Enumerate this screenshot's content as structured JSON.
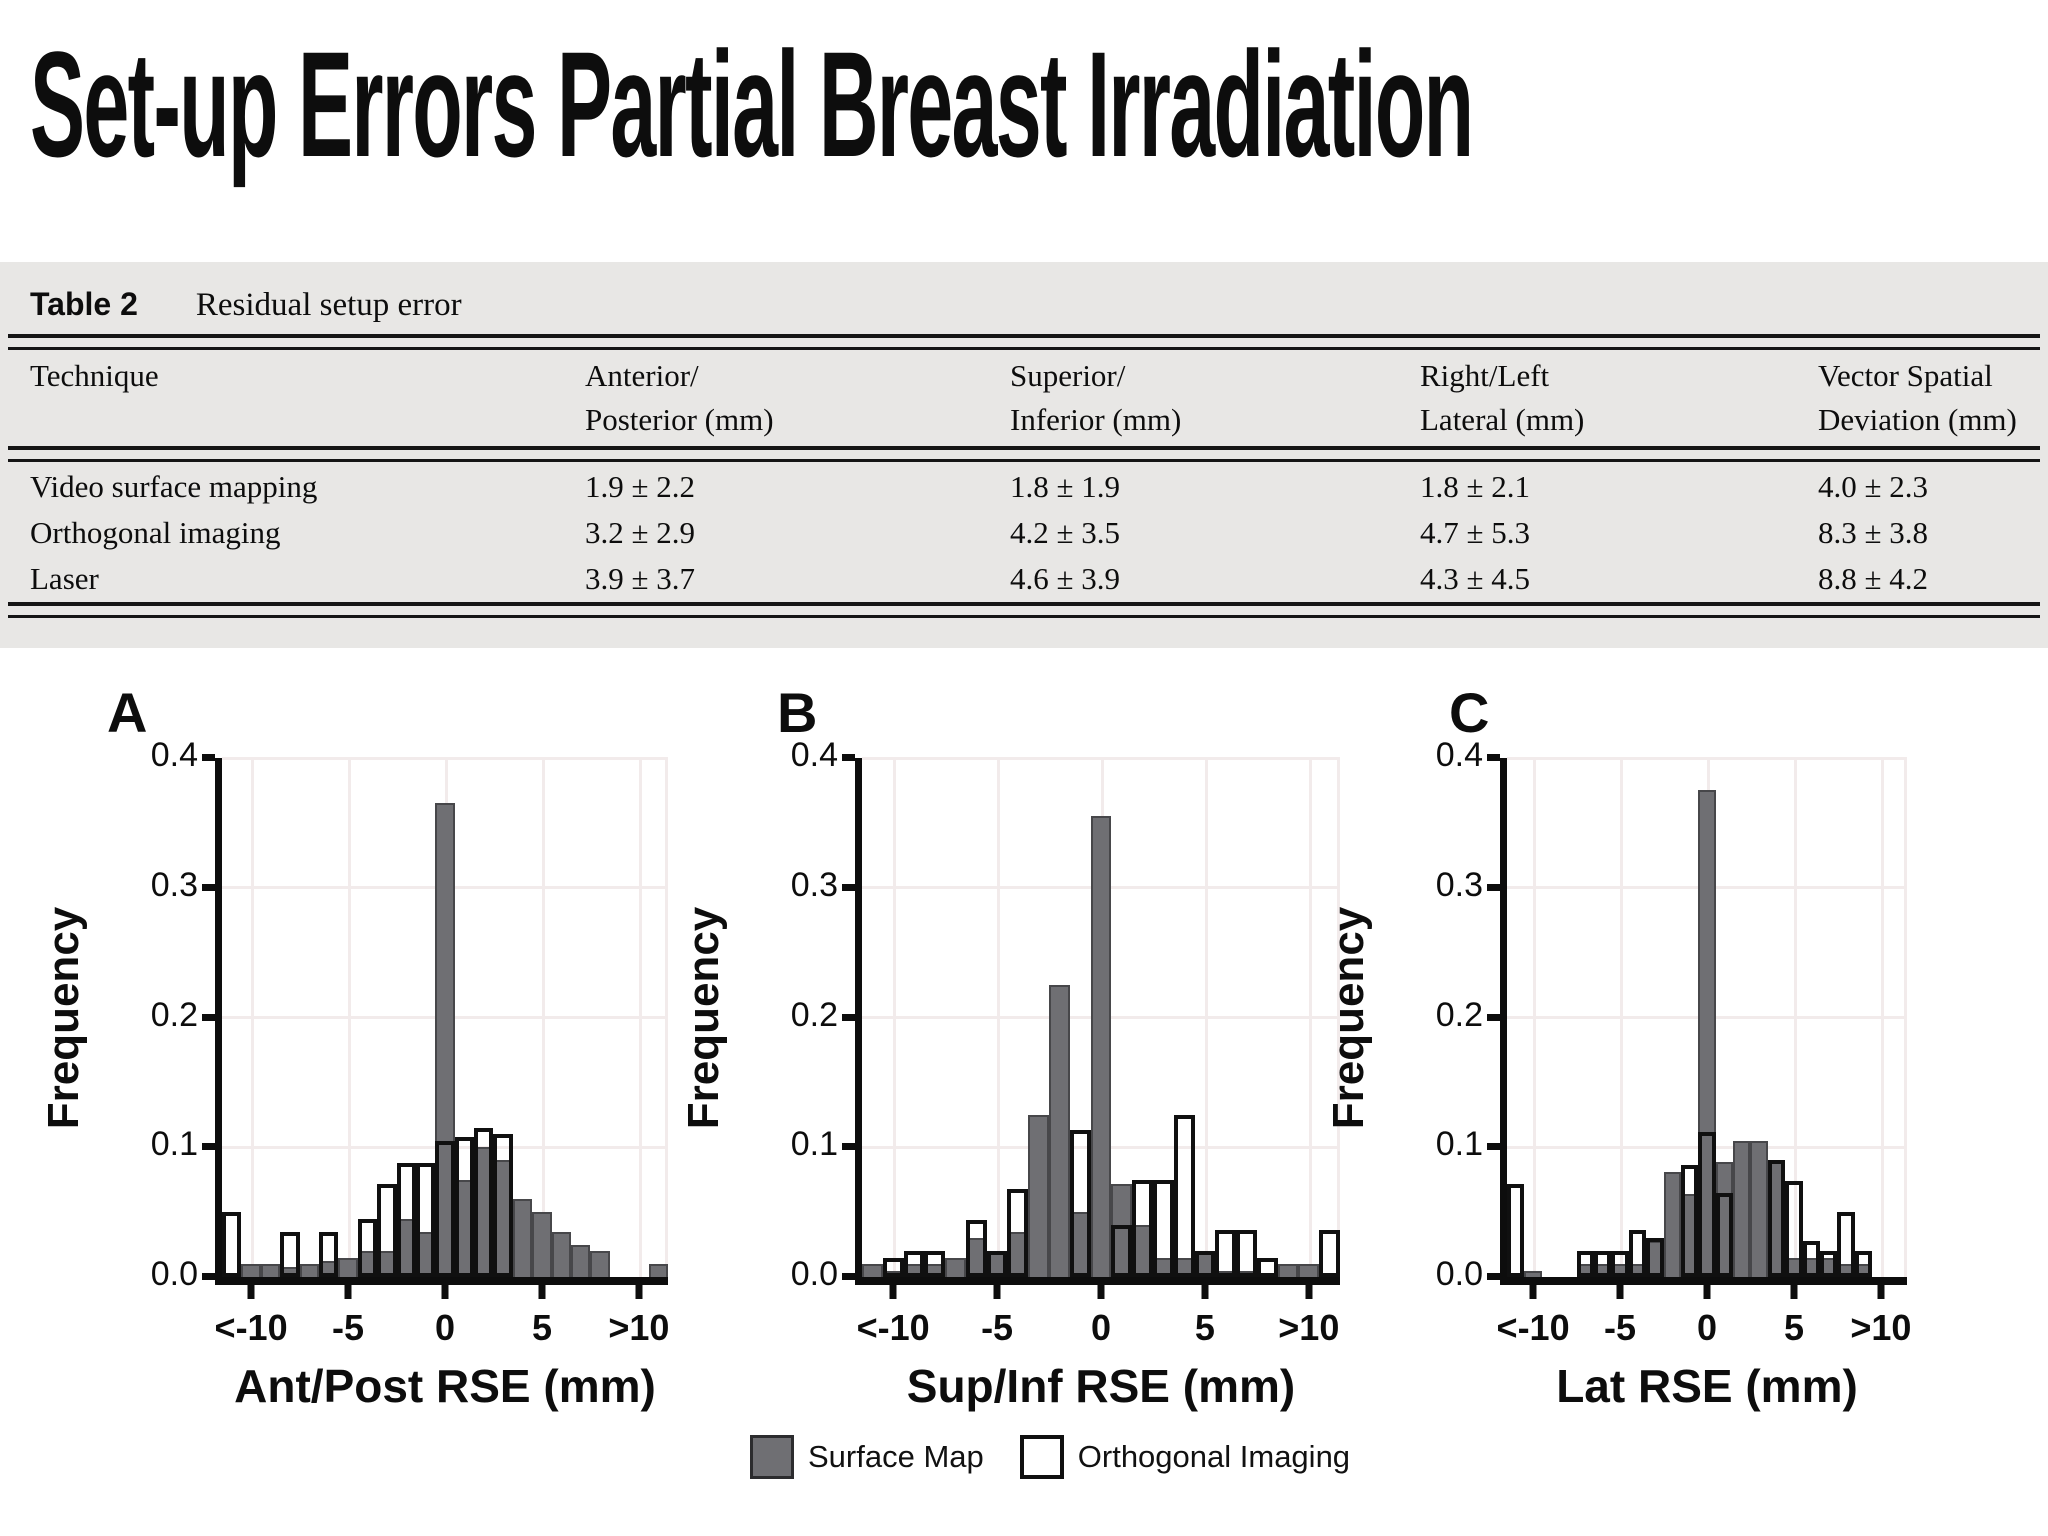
{
  "title": "Set-up Errors Partial Breast Irradiation",
  "table": {
    "label": "Table 2",
    "caption": "Residual setup error",
    "headers": [
      {
        "line1": "Technique",
        "line2": ""
      },
      {
        "line1": "Anterior/",
        "line2": "Posterior (mm)"
      },
      {
        "line1": "Superior/",
        "line2": "Inferior (mm)"
      },
      {
        "line1": "Right/Left",
        "line2": "Lateral (mm)"
      },
      {
        "line1": "Vector Spatial",
        "line2": "Deviation (mm)"
      }
    ],
    "rows": [
      [
        "Video surface mapping",
        "1.9 ± 2.2",
        "1.8 ± 1.9",
        "1.8 ± 2.1",
        "4.0 ± 2.3"
      ],
      [
        "Orthogonal imaging",
        "3.2 ± 2.9",
        "4.2 ± 3.5",
        "4.7 ± 5.3",
        "8.3 ± 3.8"
      ],
      [
        "Laser",
        "3.9 ± 3.7",
        "4.6 ± 3.9",
        "4.3 ± 4.5",
        "8.8 ± 4.2"
      ]
    ]
  },
  "legend": {
    "surface_label": "Surface Map",
    "orthogonal_label": "Orthogonal Imaging"
  },
  "colors": {
    "surface_fill": "#6f6f73",
    "surface_edge": "#47474a",
    "orthogonal_edge": "#101010",
    "table_bg": "#e8e7e5",
    "grid": "#f2ebeb"
  },
  "chart_data": [
    {
      "type": "bar",
      "panel": "A",
      "xlabel": "Ant/Post RSE (mm)",
      "ylabel": "Frequency",
      "ylim": [
        0,
        0.4
      ],
      "yticks": [
        0,
        0.1,
        0.2,
        0.3,
        0.4
      ],
      "ytick_labels": [
        "0.0",
        "0.1",
        "0.2",
        "0.3",
        "0.4"
      ],
      "xticks": [
        -10,
        -5,
        0,
        5,
        10
      ],
      "xtick_labels": [
        "<-10",
        "-5",
        "0",
        "5",
        ">10"
      ],
      "xrange": [
        -11.5,
        11.5
      ],
      "bin_width": 1,
      "grid": true,
      "legend_position": "bottom",
      "bin_centers": [
        -11,
        -10,
        -9,
        -8,
        -7,
        -6,
        -5,
        -4,
        -3,
        -2,
        -1,
        0,
        1,
        2,
        3,
        4,
        5,
        6,
        7,
        8,
        9,
        10,
        11
      ],
      "series": [
        {
          "name": "Surface Map",
          "values": [
            0,
            0.01,
            0.01,
            0.008,
            0.01,
            0.012,
            0.015,
            0.02,
            0.02,
            0.045,
            0.035,
            0.365,
            0.075,
            0.1,
            0.09,
            0.06,
            0.05,
            0.035,
            0.025,
            0.02,
            0,
            0,
            0.01
          ]
        },
        {
          "name": "Orthogonal Imaging",
          "values": [
            0.05,
            0,
            0,
            0.035,
            0,
            0.035,
            0,
            0.045,
            0.072,
            0.088,
            0.088,
            0.105,
            0.108,
            0.115,
            0.11,
            0,
            0,
            0,
            0,
            0,
            0,
            0,
            0
          ]
        }
      ]
    },
    {
      "type": "bar",
      "panel": "B",
      "xlabel": "Sup/Inf RSE (mm)",
      "ylabel": "Frequency",
      "ylim": [
        0,
        0.4
      ],
      "yticks": [
        0,
        0.1,
        0.2,
        0.3,
        0.4
      ],
      "ytick_labels": [
        "0.0",
        "0.1",
        "0.2",
        "0.3",
        "0.4"
      ],
      "xticks": [
        -10,
        -5,
        0,
        5,
        10
      ],
      "xtick_labels": [
        "<-10",
        "-5",
        "0",
        "5",
        ">10"
      ],
      "xrange": [
        -11.5,
        11.5
      ],
      "bin_width": 1,
      "grid": true,
      "legend_position": "bottom",
      "bin_centers": [
        -11,
        -10,
        -9,
        -8,
        -7,
        -6,
        -5,
        -4,
        -3,
        -2,
        -1,
        0,
        1,
        2,
        3,
        4,
        5,
        6,
        7,
        8,
        9,
        10,
        11
      ],
      "series": [
        {
          "name": "Surface Map",
          "values": [
            0.01,
            0.005,
            0.01,
            0.01,
            0.015,
            0.03,
            0.02,
            0.035,
            0.125,
            0.225,
            0.05,
            0.355,
            0.072,
            0.04,
            0.015,
            0.015,
            0.02,
            0.005,
            0.005,
            0,
            0.01,
            0.01,
            0
          ]
        },
        {
          "name": "Orthogonal Imaging",
          "values": [
            0,
            0.015,
            0.02,
            0.02,
            0,
            0.044,
            0.02,
            0.068,
            0,
            0,
            0.113,
            0,
            0.04,
            0.075,
            0.075,
            0.125,
            0.02,
            0.036,
            0.036,
            0.015,
            0,
            0,
            0.036
          ]
        }
      ]
    },
    {
      "type": "bar",
      "panel": "C",
      "xlabel": "Lat RSE (mm)",
      "ylabel": "Frequency",
      "ylim": [
        0,
        0.4
      ],
      "yticks": [
        0,
        0.1,
        0.2,
        0.3,
        0.4
      ],
      "ytick_labels": [
        "0.0",
        "0.1",
        "0.2",
        "0.3",
        "0.4"
      ],
      "xticks": [
        -10,
        -5,
        0,
        5,
        10
      ],
      "xtick_labels": [
        "<-10",
        "-5",
        "0",
        "5",
        ">10"
      ],
      "xrange": [
        -11.5,
        11.5
      ],
      "bin_width": 1,
      "grid": true,
      "legend_position": "bottom",
      "bin_centers": [
        -11,
        -10,
        -9,
        -8,
        -7,
        -6,
        -5,
        -4,
        -3,
        -2,
        -1,
        0,
        1,
        2,
        3,
        4,
        5,
        6,
        7,
        8,
        9,
        10,
        11
      ],
      "series": [
        {
          "name": "Surface Map",
          "values": [
            0,
            0.005,
            0,
            0,
            0.01,
            0.01,
            0.01,
            0.01,
            0.028,
            0.081,
            0.064,
            0.375,
            0.089,
            0.105,
            0.105,
            0.09,
            0.015,
            0.015,
            0.015,
            0.01,
            0.01,
            0,
            0
          ]
        },
        {
          "name": "Orthogonal Imaging",
          "values": [
            0.072,
            0,
            0,
            0,
            0.02,
            0.02,
            0.02,
            0.036,
            0.03,
            0,
            0.086,
            0.112,
            0.065,
            0,
            0,
            0.09,
            0.074,
            0.028,
            0.02,
            0.05,
            0.02,
            0,
            0
          ]
        }
      ]
    }
  ]
}
